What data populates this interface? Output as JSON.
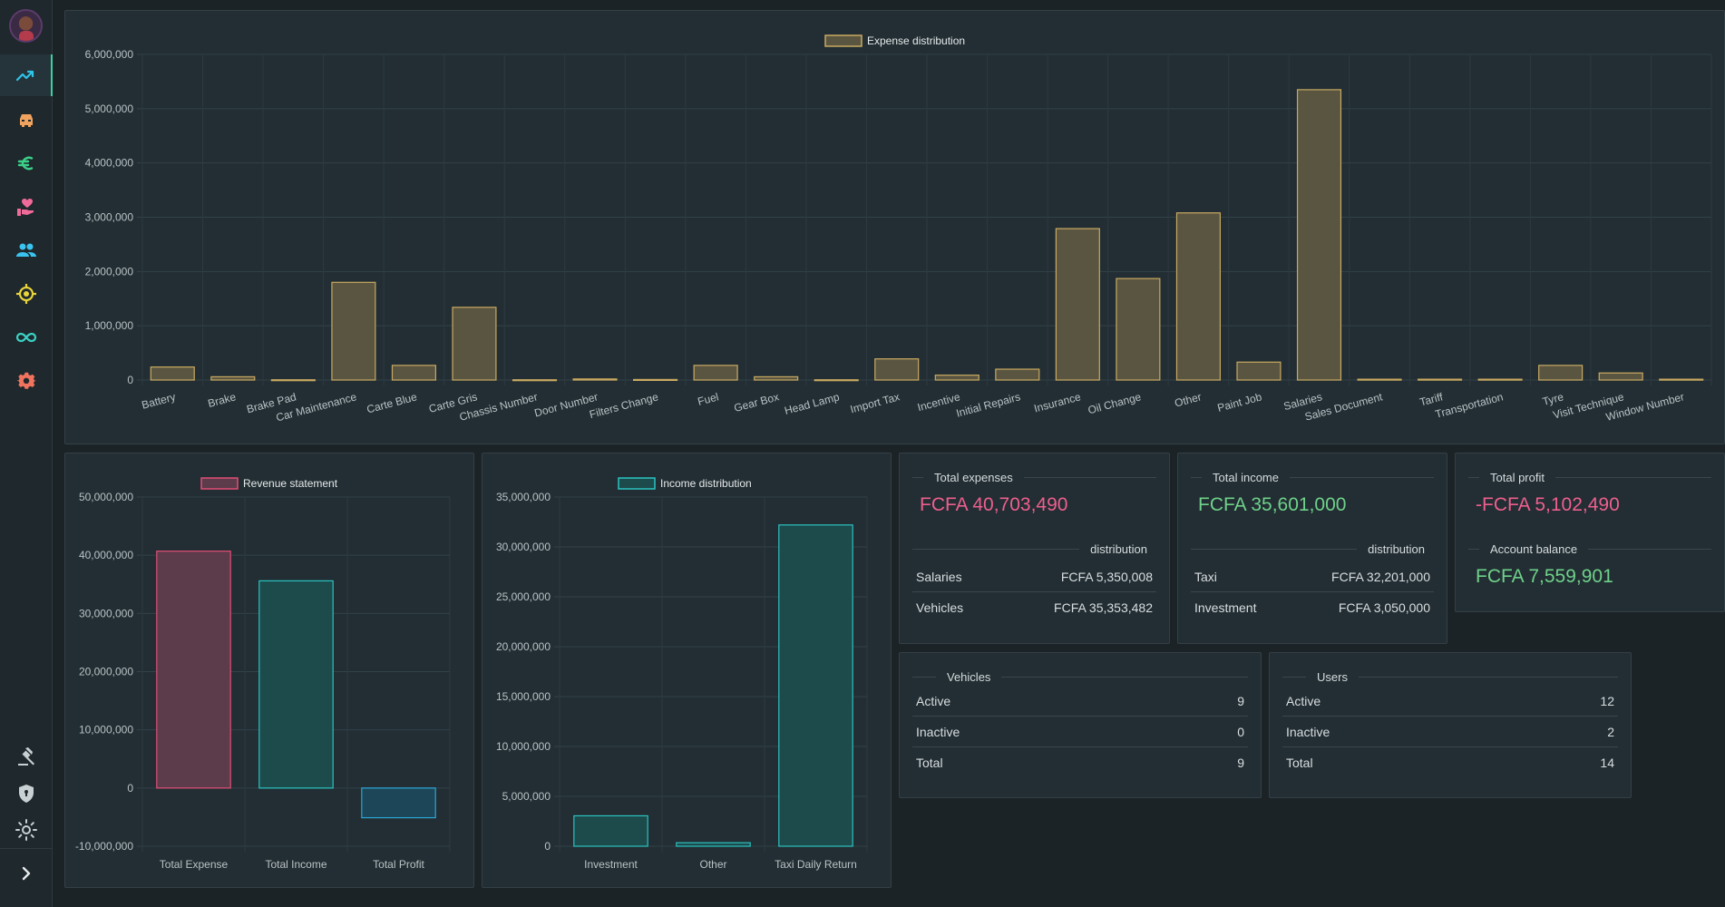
{
  "sidebar": {
    "nav_items": [
      {
        "id": "dashboard",
        "icon": "trending-up-icon",
        "color": "#2ec4e8",
        "active": true
      },
      {
        "id": "vehicles",
        "icon": "car-icon",
        "color": "#f0a35e"
      },
      {
        "id": "finance",
        "icon": "euro-icon",
        "color": "#3bd18a"
      },
      {
        "id": "donations",
        "icon": "hand-heart-icon",
        "color": "#f06a9a"
      },
      {
        "id": "users",
        "icon": "people-icon",
        "color": "#3ac3ef"
      },
      {
        "id": "tracking",
        "icon": "target-icon",
        "color": "#e8d43a"
      },
      {
        "id": "integrations",
        "icon": "infinity-icon",
        "color": "#3bd1c4"
      },
      {
        "id": "settings",
        "icon": "gear-icon",
        "color": "#f0735e"
      }
    ],
    "bottom_items": [
      {
        "id": "legal",
        "icon": "gavel-icon"
      },
      {
        "id": "security",
        "icon": "shield-icon"
      },
      {
        "id": "theme",
        "icon": "sun-icon"
      },
      {
        "id": "expand",
        "icon": "chevron-right-icon"
      }
    ]
  },
  "colors": {
    "expense_fill": "#5a5541",
    "expense_stroke": "#c9a961",
    "revenue_expense_fill": "#5c3b4a",
    "revenue_expense_stroke": "#e24e76",
    "revenue_income_fill": "#1d4a4b",
    "revenue_income_stroke": "#2bc3c1",
    "revenue_profit_fill": "#1d4658",
    "revenue_profit_stroke": "#2ba6d6",
    "income_fill": "#1d4a4b",
    "income_stroke": "#2bc3c1"
  },
  "chart_data": [
    {
      "id": "expense",
      "type": "bar",
      "legend": "Expense distribution",
      "categories": [
        "Battery",
        "Brake",
        "Brake Pad",
        "Car Maintenance",
        "Carte Blue",
        "Carte Gris",
        "Chassis Number",
        "Door Number",
        "Filters Change",
        "Fuel",
        "Gear Box",
        "Head Lamp",
        "Import Tax",
        "Incentive",
        "Initial Repairs",
        "Insurance",
        "Oil Change",
        "Other",
        "Paint Job",
        "Salaries",
        "Sales Document",
        "Tariff",
        "Transportation",
        "Tyre",
        "Visit Technique",
        "Window Number"
      ],
      "values": [
        240000,
        60000,
        5000,
        1800000,
        270000,
        1340000,
        5000,
        20000,
        10000,
        270000,
        60000,
        5000,
        390000,
        90000,
        200000,
        2790000,
        1870000,
        3080000,
        330000,
        5350008,
        15000,
        15000,
        15000,
        270000,
        130000,
        15000
      ],
      "ylim": [
        0,
        6000000
      ],
      "ticks": [
        "0",
        "1,000,000",
        "2,000,000",
        "3,000,000",
        "4,000,000",
        "5,000,000",
        "6,000,000"
      ]
    },
    {
      "id": "revenue",
      "type": "bar",
      "legend": "Revenue statement",
      "categories": [
        "Total Expense",
        "Total Income",
        "Total Profit"
      ],
      "values": [
        40703490,
        35601000,
        -5102490
      ],
      "ylim": [
        -10000000,
        50000000
      ],
      "ticks": [
        "-10,000,000",
        "0",
        "10,000,000",
        "20,000,000",
        "30,000,000",
        "40,000,000",
        "50,000,000"
      ]
    },
    {
      "id": "income",
      "type": "bar",
      "legend": "Income distribution",
      "categories": [
        "Investment",
        "Other",
        "Taxi Daily Return"
      ],
      "values": [
        3050000,
        350000,
        32201000
      ],
      "ylim": [
        0,
        35000000
      ],
      "ticks": [
        "0",
        "5,000,000",
        "10,000,000",
        "15,000,000",
        "20,000,000",
        "25,000,000",
        "30,000,000",
        "35,000,000"
      ]
    }
  ],
  "cards": {
    "expenses": {
      "title": "Total expenses",
      "value": "FCFA 40,703,490",
      "dist_title": "distribution",
      "rows": [
        {
          "label": "Salaries",
          "value": "FCFA 5,350,008"
        },
        {
          "label": "Vehicles",
          "value": "FCFA 35,353,482"
        }
      ]
    },
    "income": {
      "title": "Total income",
      "value": "FCFA 35,601,000",
      "dist_title": "distribution",
      "rows": [
        {
          "label": "Taxi",
          "value": "FCFA 32,201,000"
        },
        {
          "label": "Investment",
          "value": "FCFA 3,050,000"
        }
      ]
    },
    "profit": {
      "title": "Total profit",
      "value": "-FCFA 5,102,490",
      "balance_title": "Account balance",
      "balance_value": "FCFA 7,559,901"
    },
    "vehicles": {
      "title": "Vehicles",
      "rows": [
        {
          "label": "Active",
          "value": "9"
        },
        {
          "label": "Inactive",
          "value": "0"
        },
        {
          "label": "Total",
          "value": "9"
        }
      ]
    },
    "users": {
      "title": "Users",
      "rows": [
        {
          "label": "Active",
          "value": "12"
        },
        {
          "label": "Inactive",
          "value": "2"
        },
        {
          "label": "Total",
          "value": "14"
        }
      ]
    }
  }
}
